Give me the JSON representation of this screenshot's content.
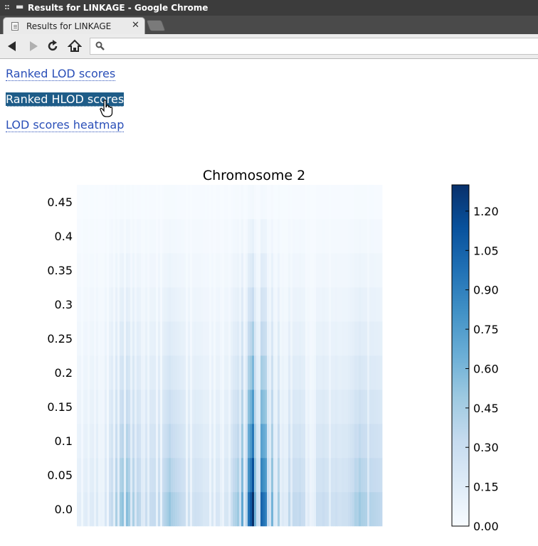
{
  "window": {
    "title": "Results for LINKAGE - Google Chrome"
  },
  "tabs": [
    {
      "label": "Results for LINKAGE",
      "active": true
    }
  ],
  "toolbar": {
    "address": ""
  },
  "links": {
    "lod": "Ranked LOD scores",
    "hlod": "Ranked HLOD scores",
    "heatmap": "LOD scores heatmap"
  },
  "colors": {
    "link": "#2a4fb8",
    "link_selected_bg": "#1e5c88",
    "cmap_low": "#f7fbff",
    "cmap_high": "#08306b"
  },
  "icons": [
    "back-arrow-icon",
    "forward-arrow-icon",
    "reload-icon",
    "home-icon",
    "search-icon",
    "hand-cursor-icon",
    "close-icon",
    "page-icon"
  ],
  "chart_data": {
    "type": "heatmap",
    "title": "Chromosome 2",
    "xlabel": "",
    "ylabel": "",
    "colormap": "Blues",
    "y_ticks": [
      "0.0",
      "0.05",
      "0.1",
      "0.15",
      "0.2",
      "0.25",
      "0.3",
      "0.35",
      "0.4",
      "0.45"
    ],
    "y_values": [
      0.0,
      0.05,
      0.1,
      0.15,
      0.2,
      0.25,
      0.3,
      0.35,
      0.4,
      0.45
    ],
    "colorbar": {
      "min": 0.0,
      "max": 1.3,
      "ticks": [
        "0.00",
        "0.15",
        "0.30",
        "0.45",
        "0.60",
        "0.75",
        "0.90",
        "1.05",
        "1.20"
      ]
    },
    "profile": [
      {
        "x": 0.0,
        "peak": 0.12
      },
      {
        "x": 0.06,
        "peak": 0.18
      },
      {
        "x": 0.1,
        "peak": 0.22
      },
      {
        "x": 0.15,
        "peak": 0.55
      },
      {
        "x": 0.18,
        "peak": 0.45
      },
      {
        "x": 0.22,
        "peak": 0.3
      },
      {
        "x": 0.28,
        "peak": 0.35
      },
      {
        "x": 0.3,
        "peak": 0.48
      },
      {
        "x": 0.35,
        "peak": 0.3
      },
      {
        "x": 0.42,
        "peak": 0.2
      },
      {
        "x": 0.5,
        "peak": 0.22
      },
      {
        "x": 0.55,
        "peak": 0.7
      },
      {
        "x": 0.58,
        "peak": 1.28
      },
      {
        "x": 0.62,
        "peak": 0.9
      },
      {
        "x": 0.65,
        "peak": 0.5
      },
      {
        "x": 0.7,
        "peak": 0.35
      },
      {
        "x": 0.75,
        "peak": 0.3
      },
      {
        "x": 0.82,
        "peak": 0.28
      },
      {
        "x": 0.88,
        "peak": 0.25
      },
      {
        "x": 0.93,
        "peak": 0.45
      },
      {
        "x": 1.0,
        "peak": 0.35
      }
    ]
  }
}
